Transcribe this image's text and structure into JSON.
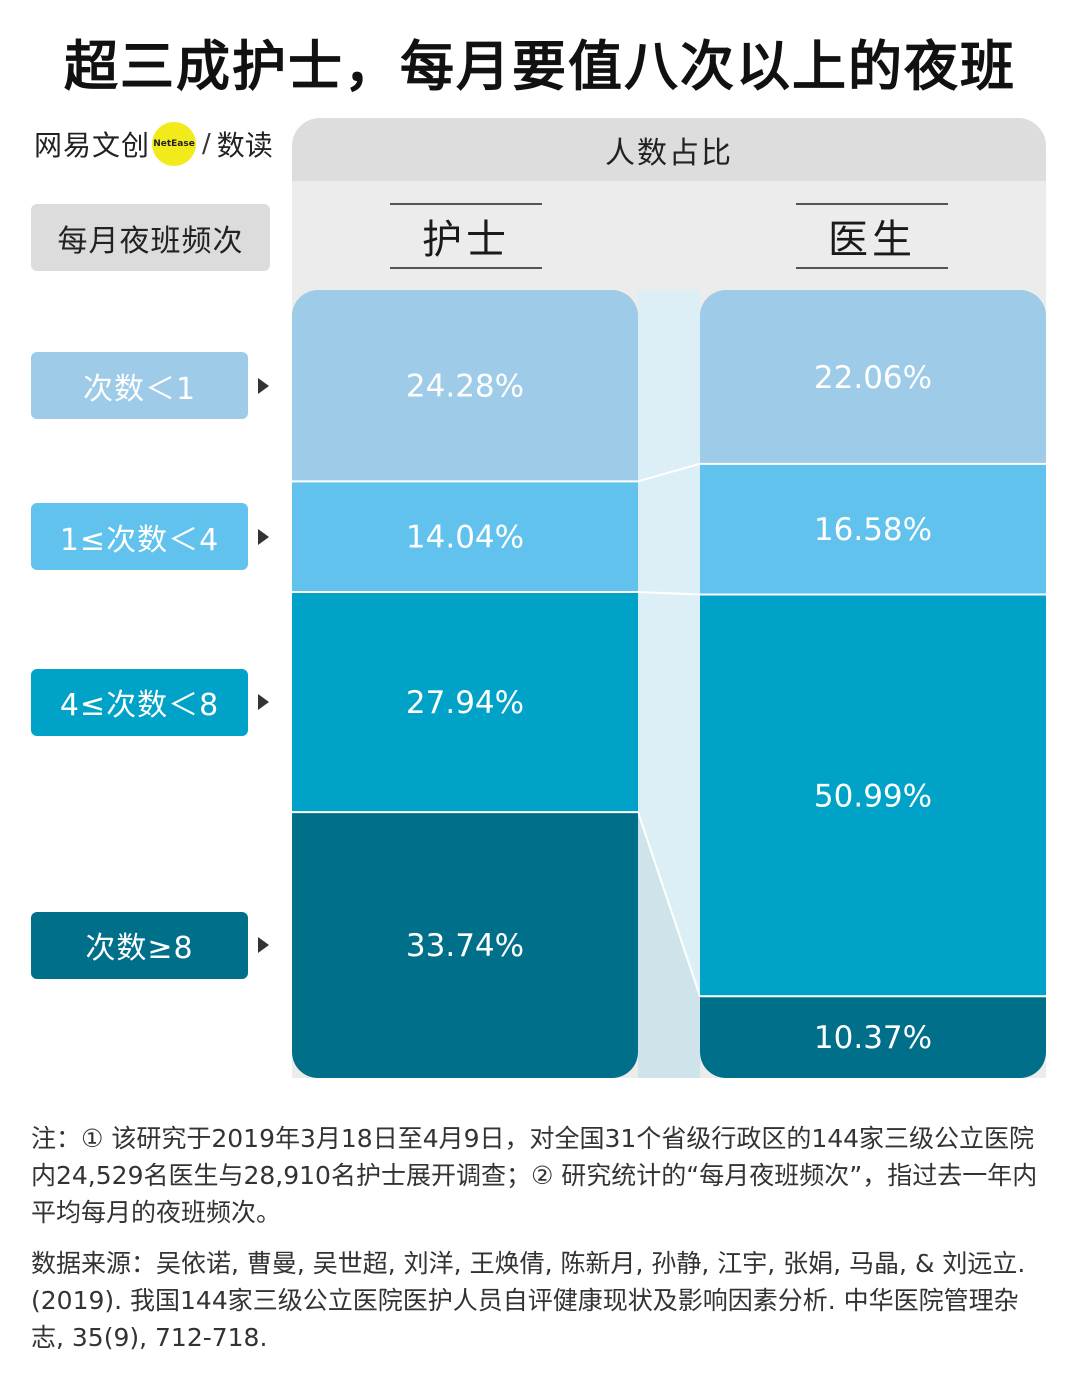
{
  "title": "超三成护士，每月要值八次以上的夜班",
  "logo": {
    "brand": "网易文创",
    "badge": "NetEase",
    "section": "数读"
  },
  "header": {
    "frequency_label": "每月夜班频次",
    "share_label": "人数占比"
  },
  "chart_data": {
    "type": "bar",
    "stacked": true,
    "orientation": "vertical",
    "unit": "%",
    "title": "超三成护士，每月要值八次以上的夜班",
    "categories": [
      "护士",
      "医生"
    ],
    "series": [
      {
        "name": "次数＜1",
        "values": [
          24.28,
          22.06
        ],
        "color": "#9dcbe8"
      },
      {
        "name": "1≤次数＜4",
        "values": [
          14.04,
          16.58
        ],
        "color": "#62c2ee"
      },
      {
        "name": "4≤次数＜8",
        "values": [
          27.94,
          50.99
        ],
        "color": "#00a3c7"
      },
      {
        "name": "次数≥8",
        "values": [
          33.74,
          10.37
        ],
        "color": "#006f8a"
      }
    ],
    "value_labels": [
      [
        "24.28%",
        "22.06%"
      ],
      [
        "14.04%",
        "16.58%"
      ],
      [
        "27.94%",
        "50.99%"
      ],
      [
        "33.74%",
        "10.37%"
      ]
    ]
  },
  "notes": {
    "note": "注：① 该研究于2019年3月18日至4月9日，对全国31个省级行政区的144家三级公立医院内24,529名医生与28,910名护士展开调查；② 研究统计的“每月夜班频次”，指过去一年内平均每月的夜班频次。",
    "source": "数据来源：吴依诺, 曹曼, 吴世超, 刘洋, 王焕倩, 陈新月, 孙静, 江宇, 张娟, 马晶, & 刘远立. (2019). 我国144家三级公立医院医护人员自评健康现状及影响因素分析. 中华医院管理杂志, 35(9), 712-718."
  }
}
